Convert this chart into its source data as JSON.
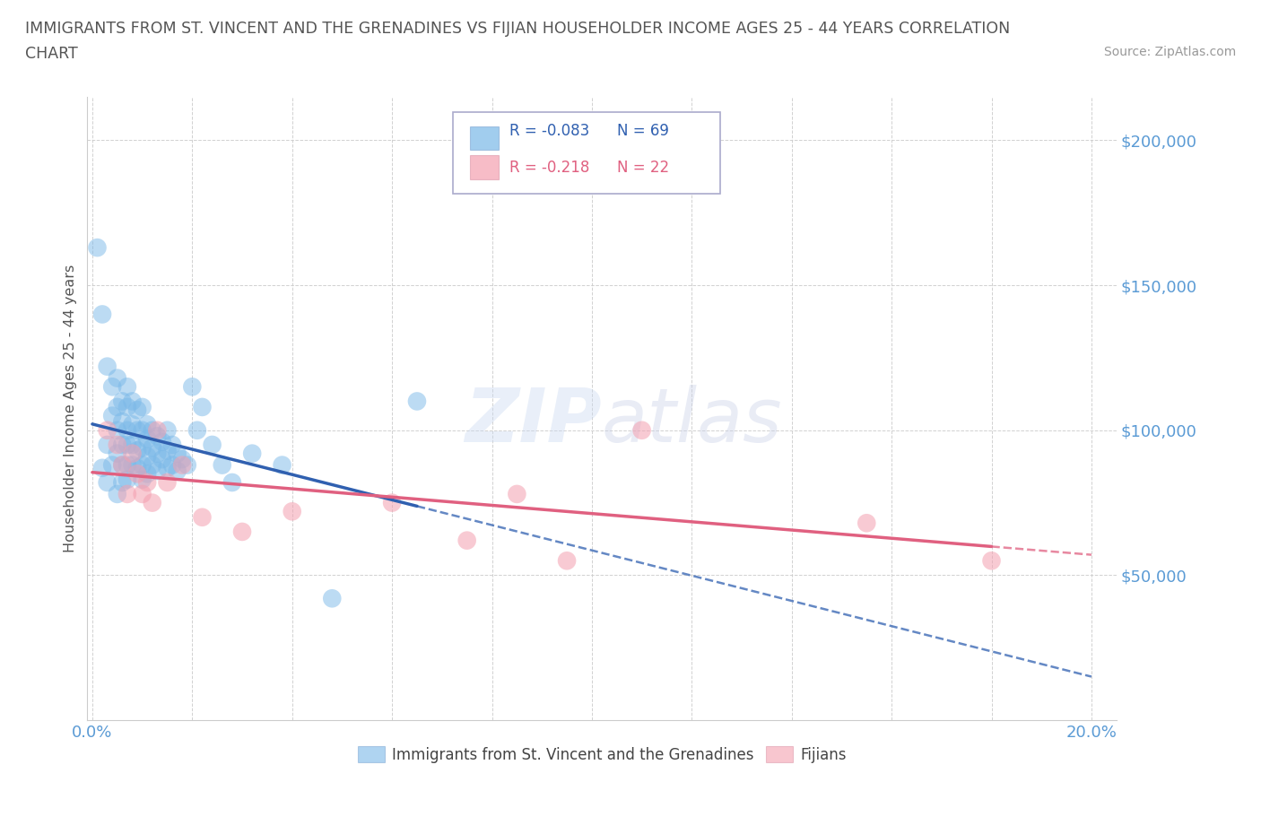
{
  "title_line1": "IMMIGRANTS FROM ST. VINCENT AND THE GRENADINES VS FIJIAN HOUSEHOLDER INCOME AGES 25 - 44 YEARS CORRELATION",
  "title_line2": "CHART",
  "source": "Source: ZipAtlas.com",
  "ylabel": "Householder Income Ages 25 - 44 years",
  "xlim": [
    -0.001,
    0.205
  ],
  "ylim": [
    0,
    215000
  ],
  "xtick_positions": [
    0.0,
    0.02,
    0.04,
    0.06,
    0.08,
    0.1,
    0.12,
    0.14,
    0.16,
    0.18,
    0.2
  ],
  "xticklabels": [
    "0.0%",
    "",
    "",
    "",
    "",
    "",
    "",
    "",
    "",
    "",
    "20.0%"
  ],
  "ytick_positions": [
    0,
    50000,
    100000,
    150000,
    200000
  ],
  "ytick_labels": [
    "",
    "$50,000",
    "$100,000",
    "$150,000",
    "$200,000"
  ],
  "legend_r1": "R = -0.083",
  "legend_n1": "N = 69",
  "legend_r2": "R = -0.218",
  "legend_n2": "N = 22",
  "series1_color": "#7ab8e8",
  "series2_color": "#f4a0b0",
  "series1_label": "Immigrants from St. Vincent and the Grenadines",
  "series2_label": "Fijians",
  "blue_line_color": "#3060b0",
  "pink_line_color": "#e06080",
  "blue_x": [
    0.001,
    0.002,
    0.002,
    0.003,
    0.003,
    0.003,
    0.004,
    0.004,
    0.004,
    0.005,
    0.005,
    0.005,
    0.005,
    0.005,
    0.006,
    0.006,
    0.006,
    0.006,
    0.006,
    0.007,
    0.007,
    0.007,
    0.007,
    0.007,
    0.007,
    0.008,
    0.008,
    0.008,
    0.008,
    0.009,
    0.009,
    0.009,
    0.009,
    0.01,
    0.01,
    0.01,
    0.01,
    0.01,
    0.011,
    0.011,
    0.011,
    0.011,
    0.012,
    0.012,
    0.012,
    0.013,
    0.013,
    0.013,
    0.014,
    0.014,
    0.015,
    0.015,
    0.015,
    0.016,
    0.016,
    0.017,
    0.017,
    0.018,
    0.019,
    0.02,
    0.021,
    0.022,
    0.024,
    0.026,
    0.028,
    0.032,
    0.038,
    0.048,
    0.065
  ],
  "blue_y": [
    163000,
    140000,
    87000,
    122000,
    95000,
    82000,
    115000,
    105000,
    88000,
    118000,
    108000,
    100000,
    92000,
    78000,
    110000,
    103000,
    95000,
    88000,
    82000,
    115000,
    108000,
    100000,
    95000,
    88000,
    83000,
    110000,
    102000,
    95000,
    88000,
    107000,
    100000,
    93000,
    87000,
    108000,
    100000,
    94000,
    88000,
    83000,
    102000,
    97000,
    91000,
    85000,
    100000,
    94000,
    88000,
    98000,
    92000,
    86000,
    96000,
    90000,
    100000,
    93000,
    87000,
    95000,
    88000,
    92000,
    86000,
    90000,
    88000,
    115000,
    100000,
    108000,
    95000,
    88000,
    82000,
    92000,
    88000,
    42000,
    110000
  ],
  "pink_x": [
    0.003,
    0.005,
    0.006,
    0.007,
    0.008,
    0.009,
    0.01,
    0.011,
    0.012,
    0.013,
    0.015,
    0.018,
    0.022,
    0.03,
    0.04,
    0.06,
    0.075,
    0.085,
    0.095,
    0.11,
    0.155,
    0.18
  ],
  "pink_y": [
    100000,
    95000,
    88000,
    78000,
    92000,
    85000,
    78000,
    82000,
    75000,
    100000,
    82000,
    88000,
    70000,
    65000,
    72000,
    75000,
    62000,
    78000,
    55000,
    100000,
    68000,
    55000
  ]
}
